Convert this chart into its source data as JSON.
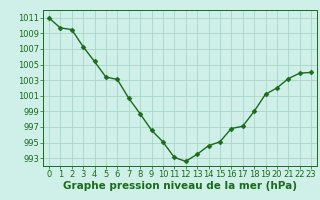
{
  "x": [
    0,
    1,
    2,
    3,
    4,
    5,
    6,
    7,
    8,
    9,
    10,
    11,
    12,
    13,
    14,
    15,
    16,
    17,
    18,
    19,
    20,
    21,
    22,
    23
  ],
  "y": [
    1011.0,
    1009.7,
    1009.5,
    1007.3,
    1005.4,
    1003.4,
    1003.1,
    1000.7,
    998.7,
    996.6,
    995.1,
    993.1,
    992.6,
    993.5,
    994.6,
    995.1,
    996.8,
    997.1,
    999.0,
    1001.2,
    1002.0,
    1003.2,
    1003.9,
    1004.0
  ],
  "line_color": "#1a6b1a",
  "marker_color": "#1a6b1a",
  "bg_color": "#cff0e8",
  "grid_color": "#aad4c8",
  "xlabel": "Graphe pression niveau de la mer (hPa)",
  "ylim_min": 992,
  "ylim_max": 1012,
  "yticks": [
    993,
    995,
    997,
    999,
    1001,
    1003,
    1005,
    1007,
    1009,
    1011
  ],
  "xticks": [
    0,
    1,
    2,
    3,
    4,
    5,
    6,
    7,
    8,
    9,
    10,
    11,
    12,
    13,
    14,
    15,
    16,
    17,
    18,
    19,
    20,
    21,
    22,
    23
  ],
  "xlabel_fontsize": 7.5,
  "tick_fontsize": 6.0,
  "line_width": 1.0,
  "marker_size": 2.5
}
